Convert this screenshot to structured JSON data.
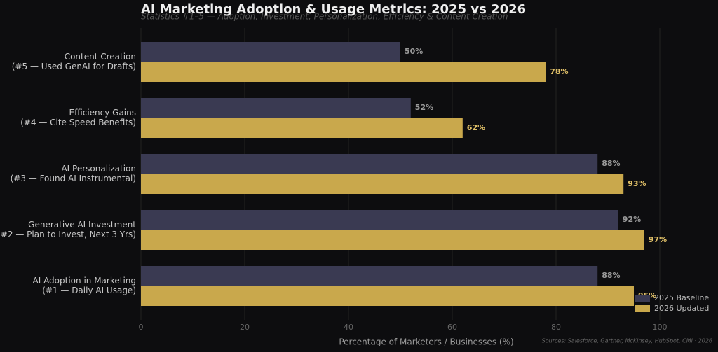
{
  "chart_data": {
    "type": "barh",
    "title": "AI Marketing Adoption & Usage Metrics: 2025 vs 2026",
    "subtitle": "Statistics #1–5 — Adoption, Investment, Personalization, Efficiency & Content Creation",
    "xlabel": "Percentage of Marketers / Businesses (%)",
    "source": "Sources: Salesforce, Gartner, McKinsey, HubSpot, CMI · 2026",
    "categories": [
      "Content Creation\n(#5 — Used GenAI for Drafts)",
      "Efficiency Gains\n(#4 — Cite Speed Benefits)",
      "AI Personalization\n(#3 — Found AI Instrumental)",
      "Generative AI Investment\n(#2 — Plan to Invest, Next 3 Yrs)",
      "AI Adoption in Marketing\n(#1 — Daily AI Usage)"
    ],
    "series": [
      {
        "name": "2025 Baseline",
        "color": "#3a3a52",
        "label_color": "#9a9a9a",
        "values": [
          50,
          52,
          88,
          92,
          88
        ],
        "value_labels": [
          "50%",
          "52%",
          "88%",
          "92%",
          "88%"
        ]
      },
      {
        "name": "2026 Updated",
        "color": "#c9a84c",
        "label_color": "#e0c068",
        "values": [
          78,
          62,
          93,
          97,
          95
        ],
        "value_labels": [
          "78%",
          "62%",
          "93%",
          "97%",
          "95%"
        ]
      }
    ],
    "xlim": [
      0,
      110
    ],
    "xticks": [
      0,
      20,
      40,
      60,
      80,
      100
    ],
    "grid": true,
    "legend": "lower right"
  }
}
